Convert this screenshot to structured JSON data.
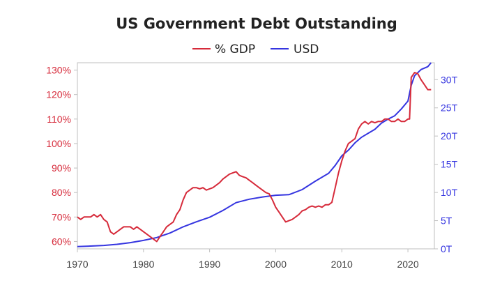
{
  "chart_data": {
    "type": "line",
    "title": "US Government Debt Outstanding",
    "xlabel": "",
    "ylabel_left": "",
    "ylabel_right": "",
    "legend_position": "top-center",
    "grid": false,
    "xlim": [
      1970,
      2024
    ],
    "ylim_left": [
      0.57,
      1.33
    ],
    "ylim_right": [
      0,
      33
    ],
    "x_ticks": [
      "1970",
      "1980",
      "1990",
      "2000",
      "2010",
      "2020"
    ],
    "y_left_ticks": [
      "60%",
      "70%",
      "80%",
      "90%",
      "100%",
      "110%",
      "120%",
      "130%"
    ],
    "y_right_ticks": [
      "0T",
      "5T",
      "10T",
      "15T",
      "20T",
      "25T",
      "30T"
    ],
    "colors": {
      "pct_gdp": "#d62a3a",
      "usd": "#3535e0",
      "frame": "#bfbfbf"
    },
    "series": [
      {
        "name": "% GDP",
        "axis": "left",
        "x": [
          1970,
          1970.5,
          1971,
          1971.5,
          1972,
          1972.5,
          1973,
          1973.5,
          1974,
          1974.5,
          1975,
          1975.5,
          1976,
          1976.5,
          1977,
          1977.5,
          1978,
          1978.5,
          1979,
          1979.5,
          1980,
          1980.5,
          1981,
          1981.5,
          1982,
          1982.5,
          1983,
          1983.5,
          1984,
          1984.5,
          1985,
          1985.5,
          1986,
          1986.5,
          1987,
          1987.5,
          1988,
          1988.5,
          1989,
          1989.5,
          1990,
          1990.5,
          1991,
          1991.5,
          1992,
          1992.5,
          1993,
          1993.5,
          1994,
          1994.5,
          1995,
          1995.5,
          1996,
          1996.5,
          1997,
          1997.5,
          1998,
          1998.5,
          1999,
          1999.5,
          2000,
          2000.5,
          2001,
          2001.5,
          2002,
          2002.5,
          2003,
          2003.5,
          2004,
          2004.5,
          2005,
          2005.5,
          2006,
          2006.5,
          2007,
          2007.5,
          2008,
          2008.5,
          2009,
          2009.5,
          2010,
          2010.5,
          2011,
          2011.5,
          2012,
          2012.5,
          2013,
          2013.5,
          2014,
          2014.5,
          2015,
          2015.5,
          2016,
          2016.5,
          2017,
          2017.5,
          2018,
          2018.5,
          2019,
          2019.5,
          2020,
          2020.25,
          2020.5,
          2021,
          2021.5,
          2022,
          2022.5,
          2023,
          2023.5
        ],
        "values": [
          0.7,
          0.69,
          0.7,
          0.7,
          0.7,
          0.71,
          0.7,
          0.71,
          0.69,
          0.68,
          0.64,
          0.63,
          0.64,
          0.65,
          0.66,
          0.66,
          0.66,
          0.65,
          0.66,
          0.65,
          0.64,
          0.63,
          0.62,
          0.61,
          0.6,
          0.62,
          0.64,
          0.66,
          0.67,
          0.68,
          0.71,
          0.73,
          0.77,
          0.8,
          0.81,
          0.82,
          0.82,
          0.815,
          0.82,
          0.81,
          0.815,
          0.82,
          0.83,
          0.84,
          0.855,
          0.865,
          0.875,
          0.88,
          0.885,
          0.87,
          0.865,
          0.86,
          0.85,
          0.84,
          0.83,
          0.82,
          0.81,
          0.8,
          0.795,
          0.77,
          0.74,
          0.72,
          0.7,
          0.68,
          0.685,
          0.69,
          0.7,
          0.71,
          0.725,
          0.73,
          0.74,
          0.745,
          0.74,
          0.745,
          0.74,
          0.75,
          0.75,
          0.76,
          0.82,
          0.88,
          0.93,
          0.97,
          1.0,
          1.01,
          1.02,
          1.06,
          1.08,
          1.09,
          1.08,
          1.09,
          1.085,
          1.09,
          1.09,
          1.1,
          1.1,
          1.09,
          1.09,
          1.1,
          1.09,
          1.09,
          1.1,
          1.1,
          1.27,
          1.29,
          1.285,
          1.26,
          1.24,
          1.22,
          1.22
        ]
      },
      {
        "name": "USD",
        "axis": "right",
        "x": [
          1970,
          1972,
          1974,
          1976,
          1978,
          1980,
          1982,
          1984,
          1986,
          1988,
          1990,
          1992,
          1994,
          1996,
          1998,
          2000,
          2002,
          2004,
          2006,
          2008,
          2009,
          2010,
          2011,
          2012,
          2013,
          2014,
          2015,
          2016,
          2017,
          2018,
          2019,
          2020,
          2020.5,
          2021,
          2022,
          2023,
          2023.5
        ],
        "values": [
          0.4,
          0.5,
          0.6,
          0.8,
          1.1,
          1.5,
          2.0,
          2.8,
          3.9,
          4.8,
          5.6,
          6.8,
          8.2,
          8.8,
          9.2,
          9.5,
          9.6,
          10.5,
          12.0,
          13.4,
          14.8,
          16.5,
          17.5,
          18.8,
          19.8,
          20.5,
          21.2,
          22.3,
          23.0,
          23.6,
          24.8,
          26.2,
          29.0,
          30.7,
          31.8,
          32.3,
          33.0
        ]
      }
    ]
  }
}
